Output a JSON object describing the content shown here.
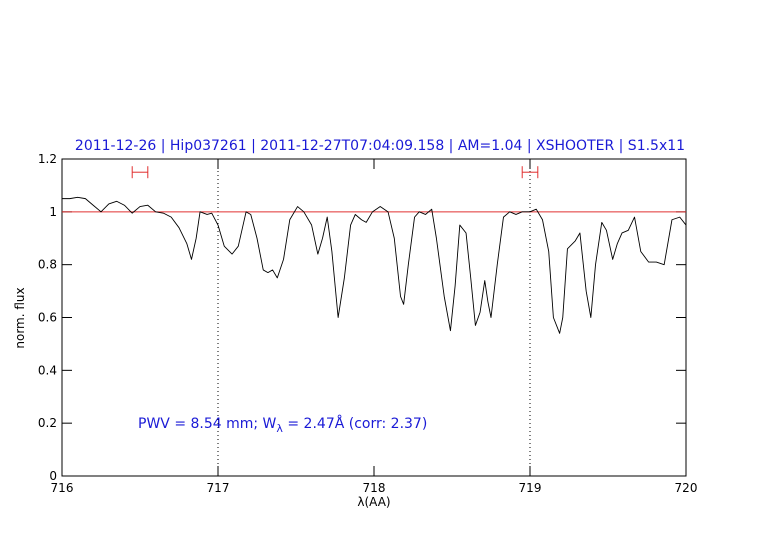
{
  "chart_data": {
    "type": "line",
    "title": "2011-12-26 | Hip037261 | 2011-12-27T07:04:09.158 | AM=1.04 | XSHOOTER | S1.5x11",
    "x_label": "λ(AA)",
    "y_label": "norm. flux",
    "annotation": {
      "prefix": "PWV = 8.54 mm; W",
      "sub": "λ",
      "suffix": " = 2.47Å (corr: 2.37)"
    },
    "xlim": [
      716,
      720
    ],
    "ylim": [
      0,
      1.2
    ],
    "xticks": [
      716,
      717,
      718,
      719,
      720
    ],
    "yticks": [
      0,
      0.2,
      0.4,
      0.6,
      0.8,
      1,
      1.2
    ],
    "hline": {
      "value": 1,
      "color": "#e03030"
    },
    "vlines": [
      717,
      719
    ],
    "windows": [
      {
        "x": [
          716.45,
          716.55
        ],
        "y": 1.15
      },
      {
        "x": [
          718.95,
          719.05
        ],
        "y": 1.15
      }
    ],
    "window_color": "#e03030",
    "x": [
      716.0,
      716.05,
      716.1,
      716.15,
      716.2,
      716.25,
      716.3,
      716.35,
      716.4,
      716.45,
      716.5,
      716.55,
      716.6,
      716.65,
      716.7,
      716.75,
      716.8,
      716.83,
      716.86,
      716.885,
      716.93,
      716.96,
      717.0,
      717.04,
      717.09,
      717.13,
      717.18,
      717.21,
      717.25,
      717.29,
      717.32,
      717.35,
      717.38,
      717.42,
      717.46,
      717.51,
      717.55,
      717.6,
      717.64,
      717.67,
      717.7,
      717.73,
      717.77,
      717.81,
      717.85,
      717.88,
      717.92,
      717.95,
      717.99,
      718.04,
      718.09,
      718.13,
      718.17,
      718.19,
      718.22,
      718.26,
      718.29,
      718.33,
      718.37,
      718.4,
      718.45,
      718.49,
      718.52,
      718.55,
      718.59,
      718.62,
      718.65,
      718.68,
      718.71,
      718.73,
      718.75,
      718.79,
      718.83,
      718.87,
      718.91,
      718.95,
      719.0,
      719.04,
      719.08,
      719.12,
      719.15,
      719.19,
      719.21,
      719.24,
      719.29,
      719.32,
      719.36,
      719.39,
      719.42,
      719.46,
      719.49,
      719.53,
      719.56,
      719.59,
      719.63,
      719.67,
      719.71,
      719.76,
      719.81,
      719.86,
      719.91,
      719.96,
      720.0
    ],
    "series": [
      {
        "name": "flux",
        "color": "#000000",
        "values": [
          1.05,
          1.05,
          1.055,
          1.05,
          1.025,
          1.0,
          1.03,
          1.04,
          1.025,
          0.995,
          1.02,
          1.025,
          1.0,
          0.995,
          0.98,
          0.94,
          0.88,
          0.82,
          0.9,
          1.0,
          0.99,
          0.995,
          0.95,
          0.87,
          0.84,
          0.87,
          1.0,
          0.99,
          0.9,
          0.78,
          0.77,
          0.78,
          0.75,
          0.82,
          0.97,
          1.02,
          1.0,
          0.95,
          0.84,
          0.9,
          0.98,
          0.85,
          0.6,
          0.75,
          0.95,
          0.99,
          0.97,
          0.96,
          1.0,
          1.02,
          1.0,
          0.9,
          0.68,
          0.65,
          0.8,
          0.98,
          1.0,
          0.99,
          1.01,
          0.9,
          0.68,
          0.55,
          0.72,
          0.95,
          0.92,
          0.75,
          0.57,
          0.62,
          0.74,
          0.66,
          0.6,
          0.8,
          0.98,
          1.0,
          0.99,
          1.0,
          1.0,
          1.01,
          0.97,
          0.85,
          0.6,
          0.54,
          0.6,
          0.86,
          0.89,
          0.92,
          0.7,
          0.6,
          0.8,
          0.96,
          0.93,
          0.82,
          0.88,
          0.92,
          0.93,
          0.98,
          0.85,
          0.81,
          0.81,
          0.8,
          0.97,
          0.98,
          0.95
        ]
      }
    ],
    "title_color": "#1a1ad6"
  }
}
